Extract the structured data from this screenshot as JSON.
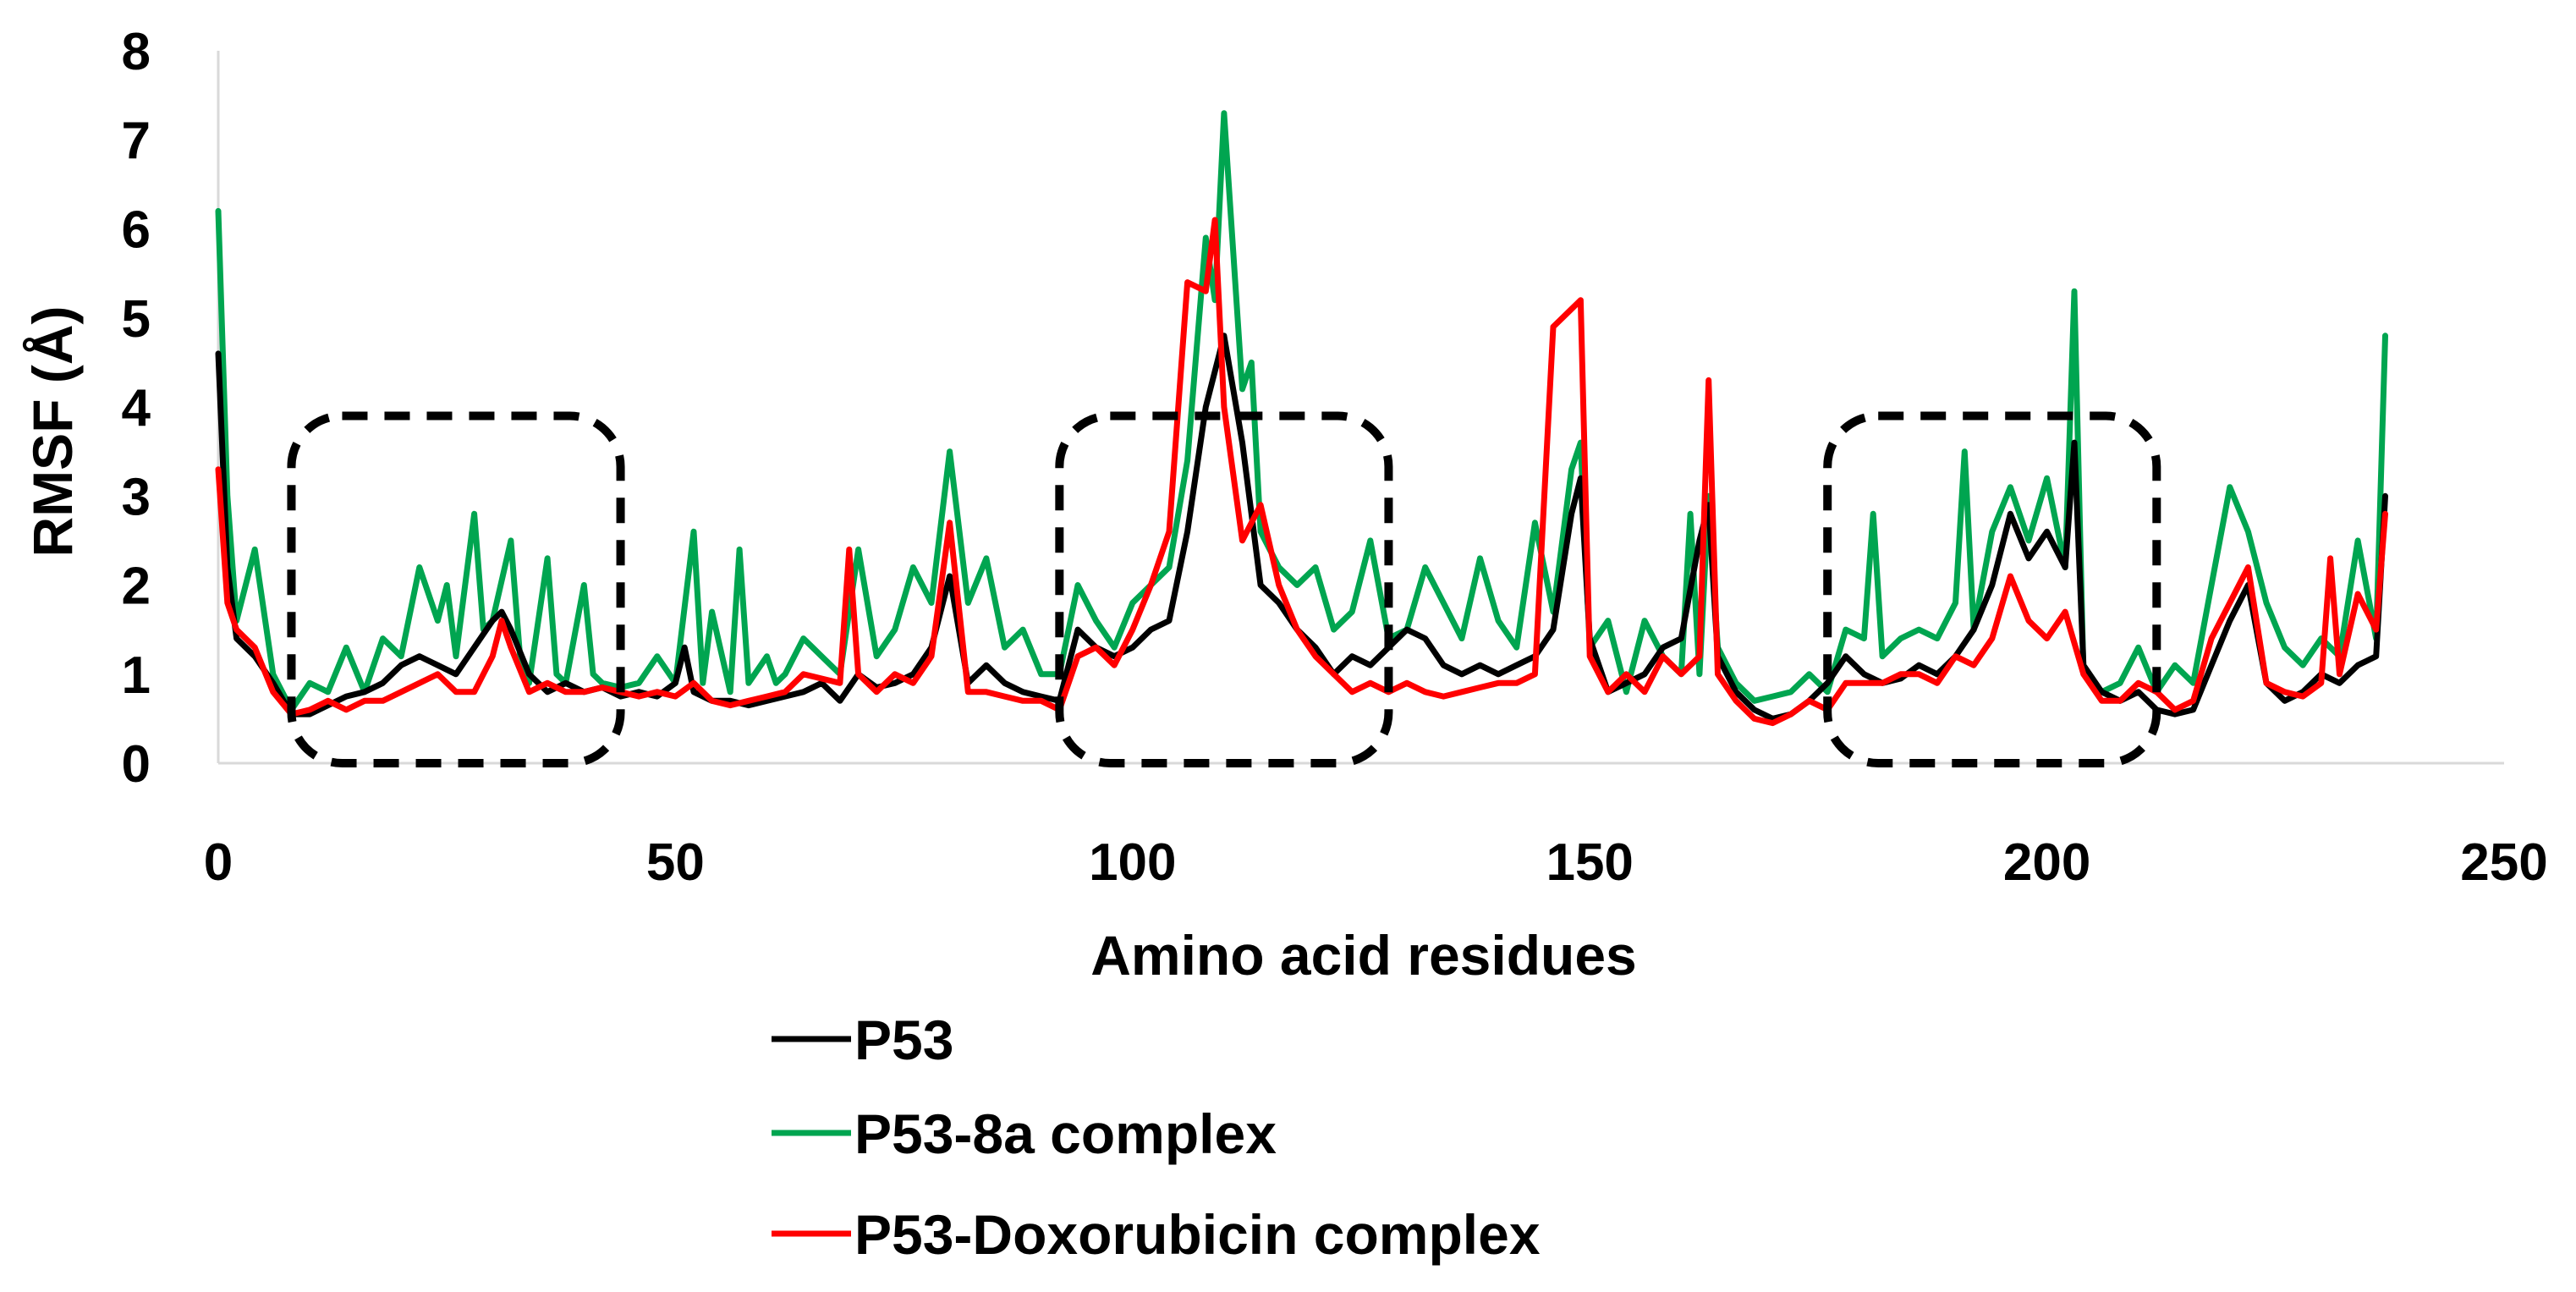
{
  "chart_data": {
    "type": "line",
    "title": "",
    "xlabel": "Amino acid residues",
    "ylabel": "RMSF (Å)",
    "xlim": [
      0,
      250
    ],
    "ylim": [
      0,
      8
    ],
    "x_ticks": [
      "0",
      "50",
      "100",
      "150",
      "200",
      "250"
    ],
    "y_ticks": [
      "0",
      "1",
      "2",
      "3",
      "4",
      "5",
      "6",
      "7",
      "8"
    ],
    "grid": false,
    "legend_position": "bottom",
    "series": [
      {
        "name": "P53",
        "color": "#000000",
        "x": [
          0,
          1,
          2,
          4,
          6,
          8,
          10,
          12,
          14,
          16,
          18,
          20,
          22,
          24,
          26,
          28,
          30,
          31,
          32,
          34,
          36,
          38,
          40,
          42,
          44,
          46,
          48,
          50,
          51,
          52,
          54,
          56,
          58,
          60,
          62,
          64,
          66,
          68,
          70,
          72,
          74,
          76,
          78,
          80,
          82,
          84,
          86,
          88,
          90,
          92,
          94,
          96,
          98,
          100,
          102,
          104,
          106,
          108,
          110,
          112,
          114,
          116,
          118,
          120,
          122,
          124,
          126,
          128,
          130,
          132,
          134,
          136,
          138,
          140,
          142,
          144,
          146,
          148,
          149,
          150,
          152,
          154,
          156,
          158,
          160,
          162,
          163,
          164,
          166,
          168,
          170,
          172,
          174,
          176,
          178,
          180,
          182,
          184,
          186,
          188,
          190,
          192,
          194,
          196,
          198,
          200,
          202,
          203,
          204,
          206,
          208,
          210,
          212,
          214,
          216,
          218,
          220,
          222,
          224,
          226,
          228,
          230,
          232,
          234,
          236,
          237
        ],
        "values": [
          4.6,
          2.2,
          1.4,
          1.2,
          0.9,
          0.55,
          0.55,
          0.65,
          0.75,
          0.8,
          0.9,
          1.1,
          1.2,
          1.1,
          1.0,
          1.3,
          1.6,
          1.7,
          1.5,
          1.0,
          0.8,
          0.9,
          0.8,
          0.85,
          0.75,
          0.8,
          0.75,
          0.9,
          1.3,
          0.8,
          0.7,
          0.7,
          0.65,
          0.7,
          0.75,
          0.8,
          0.9,
          0.7,
          1.0,
          0.85,
          0.9,
          1.0,
          1.3,
          2.1,
          0.9,
          1.1,
          0.9,
          0.8,
          0.75,
          0.7,
          1.5,
          1.3,
          1.2,
          1.3,
          1.5,
          1.6,
          2.6,
          4.0,
          4.8,
          3.6,
          2.0,
          1.8,
          1.5,
          1.3,
          1.0,
          1.2,
          1.1,
          1.3,
          1.5,
          1.4,
          1.1,
          1.0,
          1.1,
          1.0,
          1.1,
          1.2,
          1.5,
          2.8,
          3.2,
          1.4,
          0.8,
          0.9,
          1.0,
          1.3,
          1.4,
          2.5,
          2.9,
          1.2,
          0.8,
          0.6,
          0.5,
          0.55,
          0.7,
          0.9,
          1.2,
          1.0,
          0.9,
          0.95,
          1.1,
          1.0,
          1.2,
          1.5,
          2.0,
          2.8,
          2.3,
          2.6,
          2.2,
          3.6,
          1.1,
          0.8,
          0.7,
          0.8,
          0.6,
          0.55,
          0.6,
          1.1,
          1.6,
          2.0,
          0.9,
          0.7,
          0.8,
          1.0,
          0.9,
          1.1,
          1.2,
          3.0
        ]
      },
      {
        "name": "P53-8a complex",
        "color": "#00A550",
        "x": [
          0,
          1,
          2,
          4,
          6,
          8,
          10,
          12,
          14,
          16,
          18,
          20,
          22,
          24,
          25,
          26,
          28,
          29,
          30,
          32,
          33,
          34,
          36,
          37,
          38,
          40,
          41,
          42,
          44,
          46,
          48,
          50,
          52,
          53,
          54,
          56,
          57,
          58,
          60,
          61,
          62,
          64,
          66,
          68,
          70,
          72,
          74,
          76,
          78,
          80,
          82,
          84,
          86,
          88,
          90,
          92,
          94,
          96,
          98,
          100,
          102,
          104,
          106,
          108,
          109,
          110,
          112,
          113,
          114,
          116,
          118,
          120,
          122,
          124,
          126,
          128,
          130,
          132,
          134,
          136,
          138,
          140,
          142,
          144,
          146,
          148,
          149,
          150,
          152,
          154,
          156,
          158,
          160,
          161,
          162,
          163,
          164,
          166,
          168,
          170,
          172,
          174,
          176,
          178,
          180,
          181,
          182,
          184,
          186,
          188,
          190,
          191,
          192,
          194,
          196,
          198,
          200,
          202,
          203,
          204,
          206,
          208,
          210,
          212,
          214,
          216,
          218,
          220,
          222,
          224,
          226,
          228,
          230,
          232,
          234,
          236,
          237
        ],
        "values": [
          6.2,
          3.0,
          1.6,
          2.4,
          1.0,
          0.6,
          0.9,
          0.8,
          1.3,
          0.8,
          1.4,
          1.2,
          2.2,
          1.6,
          2.0,
          1.2,
          2.8,
          1.5,
          1.6,
          2.5,
          1.2,
          0.9,
          2.3,
          1.0,
          0.9,
          2.0,
          1.0,
          0.9,
          0.85,
          0.9,
          1.2,
          0.9,
          2.6,
          0.9,
          1.7,
          0.8,
          2.4,
          0.9,
          1.2,
          0.9,
          1.0,
          1.4,
          1.2,
          1.0,
          2.4,
          1.2,
          1.5,
          2.2,
          1.8,
          3.5,
          1.8,
          2.3,
          1.3,
          1.5,
          1.0,
          1.0,
          2.0,
          1.6,
          1.3,
          1.8,
          2.0,
          2.2,
          3.4,
          5.9,
          5.2,
          7.3,
          4.2,
          4.5,
          2.6,
          2.2,
          2.0,
          2.2,
          1.5,
          1.7,
          2.5,
          1.4,
          1.5,
          2.2,
          1.8,
          1.4,
          2.3,
          1.6,
          1.3,
          2.7,
          1.7,
          3.3,
          3.6,
          1.3,
          1.6,
          0.8,
          1.6,
          1.2,
          1.0,
          2.8,
          1.0,
          3.0,
          1.3,
          0.9,
          0.7,
          0.75,
          0.8,
          1.0,
          0.8,
          1.5,
          1.4,
          2.8,
          1.2,
          1.4,
          1.5,
          1.4,
          1.8,
          3.5,
          1.5,
          2.6,
          3.1,
          2.5,
          3.2,
          2.2,
          5.3,
          1.0,
          0.8,
          0.9,
          1.3,
          0.8,
          1.1,
          0.9,
          2.0,
          3.1,
          2.6,
          1.8,
          1.3,
          1.1,
          1.4,
          1.2,
          2.5,
          1.4,
          4.8
        ]
      },
      {
        "name": "P53-Doxorubicin complex",
        "color": "#FF0000",
        "x": [
          0,
          1,
          2,
          4,
          6,
          8,
          10,
          12,
          14,
          16,
          18,
          20,
          22,
          24,
          26,
          28,
          30,
          31,
          32,
          34,
          36,
          38,
          40,
          42,
          44,
          46,
          48,
          50,
          52,
          54,
          56,
          58,
          60,
          62,
          64,
          66,
          68,
          69,
          70,
          72,
          74,
          76,
          78,
          80,
          82,
          84,
          86,
          88,
          90,
          92,
          94,
          96,
          98,
          100,
          102,
          104,
          106,
          108,
          109,
          110,
          112,
          114,
          116,
          118,
          120,
          122,
          124,
          126,
          128,
          130,
          132,
          134,
          136,
          138,
          140,
          142,
          144,
          146,
          148,
          149,
          150,
          152,
          154,
          156,
          158,
          160,
          162,
          163,
          164,
          166,
          168,
          170,
          172,
          174,
          176,
          178,
          180,
          182,
          184,
          186,
          188,
          190,
          192,
          194,
          196,
          198,
          200,
          202,
          204,
          206,
          208,
          210,
          212,
          214,
          216,
          218,
          220,
          222,
          224,
          226,
          228,
          230,
          231,
          232,
          234,
          236,
          237
        ],
        "values": [
          3.3,
          1.8,
          1.5,
          1.3,
          0.8,
          0.55,
          0.6,
          0.7,
          0.6,
          0.7,
          0.7,
          0.8,
          0.9,
          1.0,
          0.8,
          0.8,
          1.2,
          1.6,
          1.3,
          0.8,
          0.9,
          0.8,
          0.8,
          0.85,
          0.8,
          0.75,
          0.8,
          0.75,
          0.9,
          0.7,
          0.65,
          0.7,
          0.75,
          0.8,
          1.0,
          0.95,
          0.9,
          2.4,
          1.0,
          0.8,
          1.0,
          0.9,
          1.2,
          2.7,
          0.8,
          0.8,
          0.75,
          0.7,
          0.7,
          0.6,
          1.2,
          1.3,
          1.1,
          1.5,
          2.0,
          2.6,
          5.4,
          5.3,
          6.1,
          4.0,
          2.5,
          2.9,
          2.0,
          1.5,
          1.2,
          1.0,
          0.8,
          0.9,
          0.8,
          0.9,
          0.8,
          0.75,
          0.8,
          0.85,
          0.9,
          0.9,
          1.0,
          4.9,
          5.1,
          5.2,
          1.2,
          0.8,
          1.0,
          0.8,
          1.2,
          1.0,
          1.2,
          4.3,
          1.0,
          0.7,
          0.5,
          0.45,
          0.55,
          0.7,
          0.6,
          0.9,
          0.9,
          0.9,
          1.0,
          1.0,
          0.9,
          1.2,
          1.1,
          1.4,
          2.1,
          1.6,
          1.4,
          1.7,
          1.0,
          0.7,
          0.7,
          0.9,
          0.8,
          0.6,
          0.7,
          1.4,
          1.8,
          2.2,
          0.9,
          0.8,
          0.75,
          0.9,
          2.3,
          1.0,
          1.9,
          1.5,
          2.8
        ]
      }
    ],
    "highlight_boxes": [
      {
        "x_range": [
          8,
          44
        ],
        "y_range": [
          0,
          3.9
        ]
      },
      {
        "x_range": [
          92,
          128
        ],
        "y_range": [
          0,
          3.9
        ]
      },
      {
        "x_range": [
          176,
          212
        ],
        "y_range": [
          0,
          3.9
        ]
      }
    ]
  }
}
